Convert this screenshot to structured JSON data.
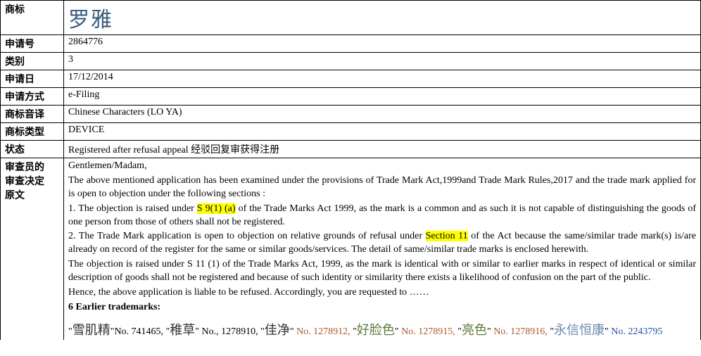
{
  "labels": {
    "trademark": "商标",
    "applicationNo": "申请号",
    "class": "类别",
    "applicationDate": "申请日",
    "filingMethod": "申请方式",
    "transliteration": "商标音译",
    "markType": "商标类型",
    "status": "状态",
    "decisionLabelLine1": "审查员的",
    "decisionLabelLine2": "审查决定",
    "decisionLabelLine3": "原文"
  },
  "values": {
    "trademarkText": "罗雅",
    "applicationNo": "2864776",
    "class": "3",
    "applicationDate": "17/12/2014",
    "filingMethod": "e-Filing",
    "transliteration": "Chinese Characters (LO YA)",
    "markType": "DEVICE",
    "status": "Registered after refusal appeal  经驳回复审获得注册"
  },
  "decision": {
    "salutation": "Gentlemen/Madam,",
    "para1a": "The above mentioned application has been examined under the provisions of Trade Mark Act,1999and Trade Mark Rules,2017 and the trade mark applied for is open to objection under the following sections :",
    "obj1_pre": "1. The objection is raised under ",
    "obj1_hl": "S 9(1) (a)",
    "obj1_post": " of the Trade Marks Act 1999, as the mark is a common and as such it is not capable of distinguishing the goods of one person from those of others shall not be registered.",
    "obj2_pre": "2. The Trade Mark application is open to objection on relative grounds of refusal under ",
    "obj2_hl": "Section 11",
    "obj2_post": " of the Act because the same/similar trade mark(s) is/are already on record of the register for the same or similar goods/services. The detail of same/similar trade marks is enclosed herewith.",
    "obj3": "The objection is raised under S 11 (1) of the Trade Marks Act, 1999, as the mark is identical with or similar to earlier marks in respect of identical or similar description of goods shall not be registered and because of such identity or similarity there exists a likelihood of confusion on the part of the public.",
    "hence": "Hence, the above application is liable to be refused. Accordingly, you are requested to ……",
    "earlierHeader": "6 Earlier trademarks:"
  },
  "earlierMarks": [
    {
      "quoteL": "\"",
      "text": "雪肌精",
      "quoteR": "\"",
      "noLabel": "No. 741465, ",
      "color": "#333333",
      "noColor": "#000000",
      "font": "STKaiti"
    },
    {
      "quoteL": "\"",
      "text": "稚草",
      "quoteR": "\"",
      "noLabel": " No., 1278910, ",
      "color": "#333333",
      "noColor": "#000000",
      "font": "STKaiti"
    },
    {
      "quoteL": "\"",
      "text": "佳净",
      "quoteR": "\"",
      "noLabel": " No. 1278912, ",
      "color": "#333333",
      "noColor": "#a55a2a",
      "font": "STKaiti"
    },
    {
      "quoteL": "\"",
      "text": "好脸色",
      "quoteR": "\"",
      "noLabel": " No. 1278915, ",
      "color": "#5a7a3a",
      "noColor": "#a55a2a",
      "font": "STXingkai"
    },
    {
      "quoteL": "\"",
      "text": "亮色",
      "quoteR": "\"",
      "noLabel": " No. 1278916, ",
      "color": "#5a7a3a",
      "noColor": "#a55a2a",
      "font": "STXingkai"
    },
    {
      "quoteL": "\"",
      "text": "永信恒康",
      "quoteR": "\"",
      "noLabel": " No. 2243795",
      "color": "#6a8aaa",
      "noColor": "#2050a0",
      "font": "STKaiti"
    }
  ]
}
